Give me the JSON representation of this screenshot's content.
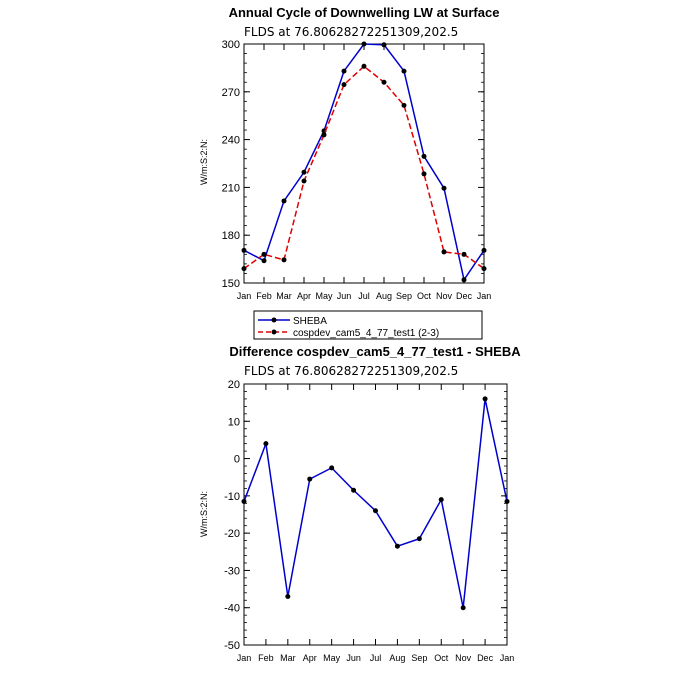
{
  "chart_data": [
    {
      "type": "line",
      "title": "Annual Cycle of Downwelling LW at Surface",
      "subtitle": "FLDS at 76.80628272251309,202.5",
      "ylabel": "W/m:S:2:N:",
      "xlabel": "",
      "categories": [
        "Jan",
        "Feb",
        "Mar",
        "Apr",
        "May",
        "Jun",
        "Jul",
        "Aug",
        "Sep",
        "Oct",
        "Nov",
        "Dec",
        "Jan"
      ],
      "ylim": [
        150,
        300
      ],
      "yticks": [
        150,
        180,
        210,
        240,
        270,
        300
      ],
      "series": [
        {
          "name": "SHEBA",
          "color": "#0000cc",
          "dash": "solid",
          "values": [
            170.5,
            164,
            201.5,
            219.5,
            245.5,
            283,
            300,
            299.5,
            283,
            229.5,
            209.5,
            152,
            170.5
          ]
        },
        {
          "name": "cospdev_cam5_4_77_test1 (2-3)",
          "color": "#e00000",
          "dash": "dashed",
          "values": [
            159,
            168,
            164.5,
            214,
            243,
            274.5,
            286,
            276,
            261.5,
            218.5,
            169.5,
            168,
            159
          ]
        }
      ],
      "legend": {
        "position": "bottom",
        "entries": [
          "SHEBA",
          "cospdev_cam5_4_77_test1 (2-3)"
        ]
      }
    },
    {
      "type": "line",
      "title": "Difference cospdev_cam5_4_77_test1 - SHEBA",
      "subtitle": "FLDS at 76.80628272251309,202.5",
      "ylabel": "W/m:S:2:N:",
      "xlabel": "",
      "categories": [
        "Jan",
        "Feb",
        "Mar",
        "Apr",
        "May",
        "Jun",
        "Jul",
        "Aug",
        "Sep",
        "Oct",
        "Nov",
        "Dec",
        "Jan"
      ],
      "ylim": [
        -50,
        20
      ],
      "yticks": [
        -50,
        -40,
        -30,
        -20,
        -10,
        0,
        10,
        20
      ],
      "series": [
        {
          "color": "#0000cc",
          "dash": "solid",
          "values": [
            -11.5,
            4,
            -37,
            -5.5,
            -2.5,
            -8.5,
            -14,
            -23.5,
            -21.5,
            -11,
            -40,
            16,
            -11.5
          ]
        }
      ]
    }
  ]
}
